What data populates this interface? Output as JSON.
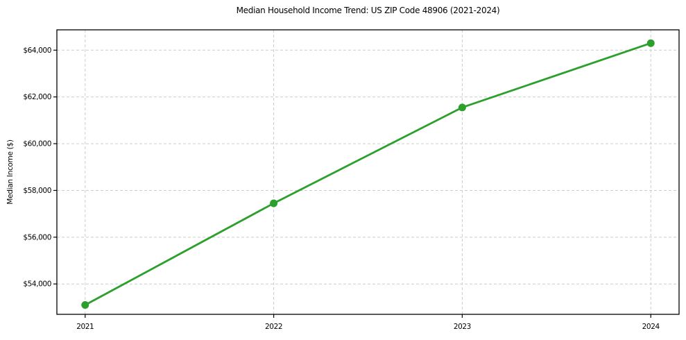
{
  "chart_data": {
    "type": "line",
    "title": "Median Household Income Trend: US ZIP Code 48906 (2021-2024)",
    "xlabel": "",
    "ylabel": "Median Income ($)",
    "x": [
      2021,
      2022,
      2023,
      2024
    ],
    "series": [
      {
        "name": "Median Household Income",
        "values": [
          53100,
          57450,
          61550,
          64300
        ]
      }
    ],
    "xticks": [
      {
        "value": 2021,
        "label": "2021"
      },
      {
        "value": 2022,
        "label": "2022"
      },
      {
        "value": 2023,
        "label": "2023"
      },
      {
        "value": 2024,
        "label": "2024"
      }
    ],
    "yticks": [
      {
        "value": 54000,
        "label": "$54,000"
      },
      {
        "value": 56000,
        "label": "$56,000"
      },
      {
        "value": 58000,
        "label": "$58,000"
      },
      {
        "value": 60000,
        "label": "$60,000"
      },
      {
        "value": 62000,
        "label": "$62,000"
      },
      {
        "value": 64000,
        "label": "$64,000"
      }
    ],
    "xlim": [
      2020.85,
      2024.15
    ],
    "ylim": [
      52700,
      64870
    ],
    "grid": true,
    "grid_style": "dashed",
    "legend": "none",
    "colors": {
      "line": "#2ca02c",
      "marker": "#2ca02c",
      "grid": "#cccccc",
      "spine": "#000000",
      "text": "#000000",
      "background": "#ffffff"
    }
  }
}
